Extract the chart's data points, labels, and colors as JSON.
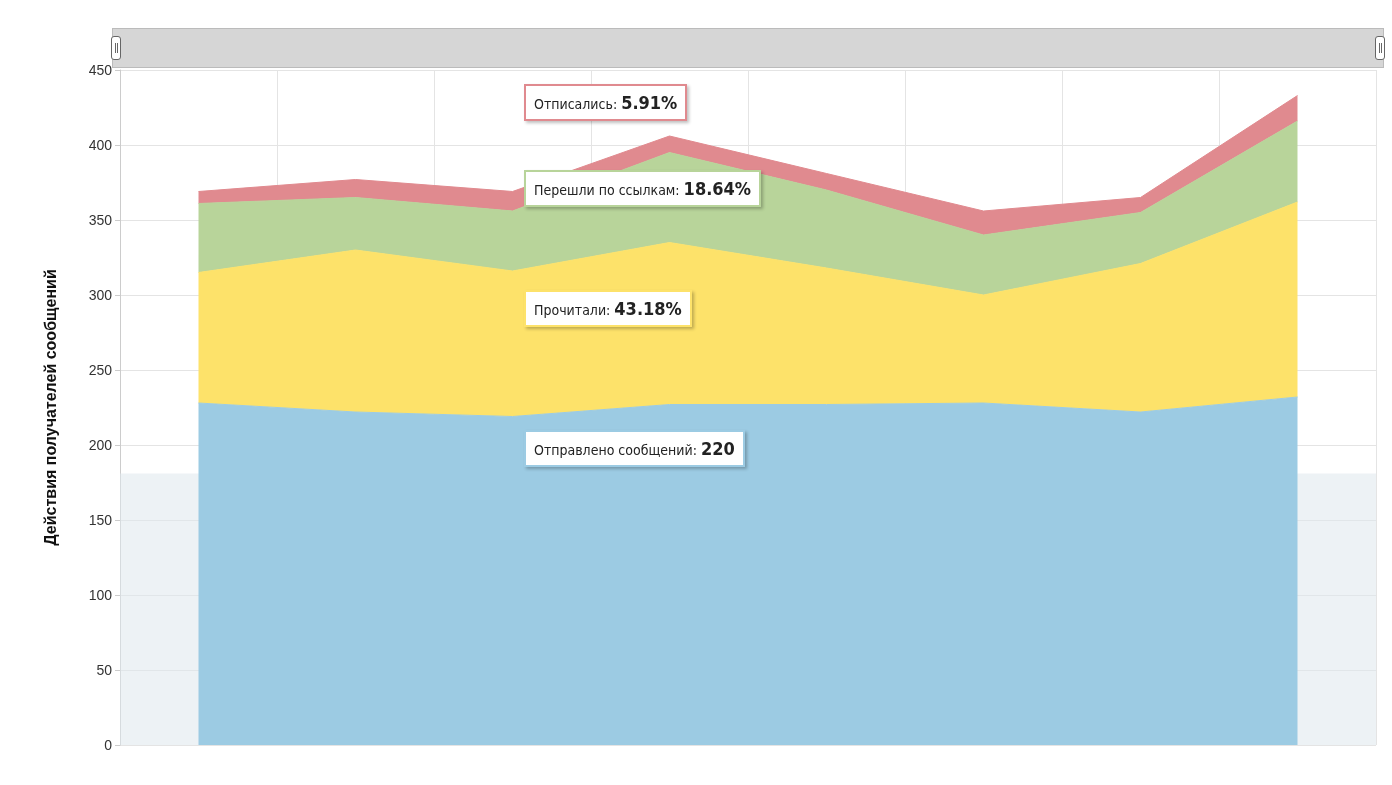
{
  "chart_data": {
    "type": "area",
    "stacked": true,
    "ylabel": "Действия получателей сообщений",
    "categories": [
      null,
      null,
      null,
      null,
      null,
      null,
      null,
      null
    ],
    "series": [
      {
        "color": "#9ccbe3",
        "values": [
          228,
          222,
          219,
          227,
          227,
          228,
          222,
          232
        ]
      },
      {
        "color": "#fde26a",
        "values": [
          87,
          108,
          97,
          108,
          91,
          72,
          99,
          130
        ]
      },
      {
        "color": "#b8d49a",
        "values": [
          46,
          35,
          40,
          60,
          52,
          40,
          34,
          54
        ]
      },
      {
        "color": "#e08a8f",
        "values": [
          8,
          12,
          13,
          11,
          11,
          16,
          10,
          17
        ]
      }
    ],
    "ylim": [
      0,
      450
    ],
    "yticks": [
      0,
      50,
      100,
      150,
      200,
      250,
      300,
      350,
      400,
      450
    ],
    "bands": [
      {
        "axis": "y",
        "from": 0,
        "to": 181,
        "color": "#dfe8ec"
      }
    ],
    "grid": true,
    "annotations": [
      "Отписались: 5.91%",
      "Перешли по ссылкам: 18.64%",
      "Прочитали: 43.18%",
      "Отправлено сообщений: 220"
    ]
  }
}
